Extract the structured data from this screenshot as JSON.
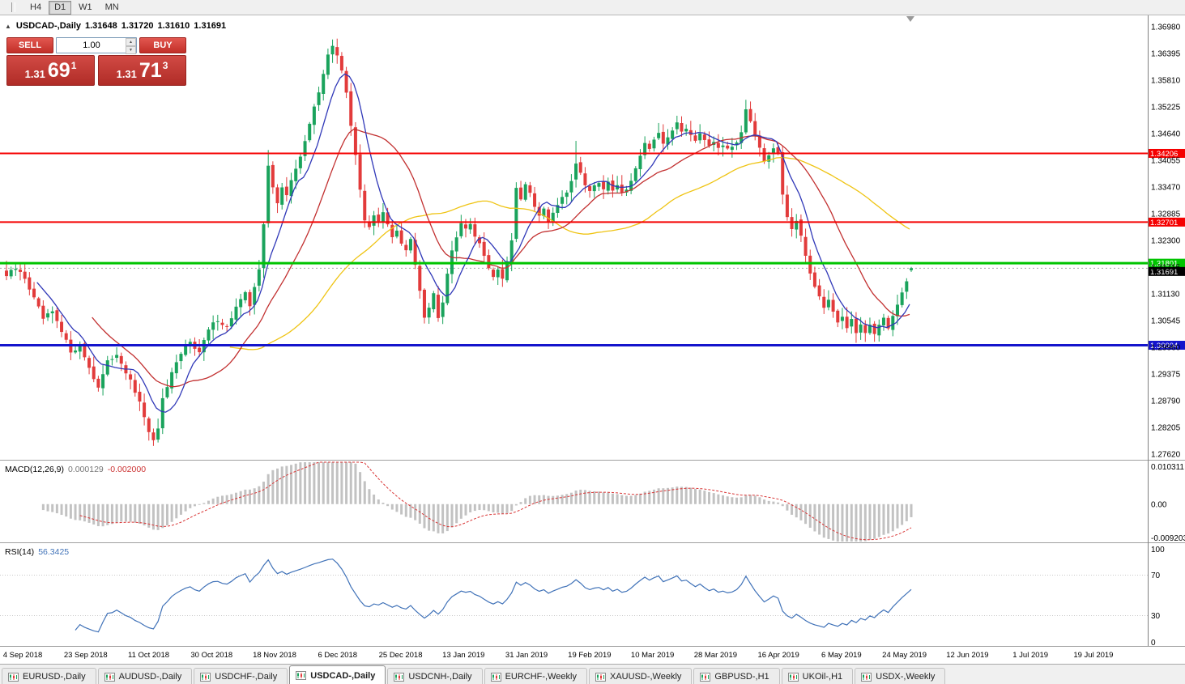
{
  "toolbar": {
    "timeframes": [
      "H4",
      "D1",
      "W1",
      "MN"
    ],
    "active": "D1"
  },
  "chart": {
    "title": "USDCAD-,Daily",
    "collapse_icon": "▲",
    "ohlc": {
      "open": "1.31648",
      "high": "1.31720",
      "low": "1.31610",
      "close": "1.31691"
    },
    "one_click": {
      "sell_label": "SELL",
      "buy_label": "BUY",
      "volume": "1.00",
      "bid_big": "1.31",
      "bid_pips": "69",
      "bid_sup": "1",
      "ask_big": "1.31",
      "ask_pips": "71",
      "ask_sup": "3",
      "spin_up_icon": "▲",
      "spin_down_icon": "▼"
    }
  },
  "price_axis": [
    "1.36980",
    "1.36395",
    "1.35810",
    "1.35225",
    "1.34640",
    "1.34055",
    "1.33470",
    "1.32885",
    "1.32300",
    "1.31715",
    "1.31130",
    "1.30545",
    "1.29960",
    "1.29375",
    "1.28790",
    "1.28205",
    "1.27620"
  ],
  "hlines": [
    {
      "price": 1.34206,
      "label": "1.34206",
      "color": "hline_red",
      "width": 2
    },
    {
      "price": 1.32701,
      "label": "1.32701",
      "color": "hline_red",
      "width": 2
    },
    {
      "price": 1.31801,
      "label": "1.31801",
      "color": "hline_green",
      "width": 3
    },
    {
      "price": 1.30004,
      "label": "1.30004",
      "color": "hline_blue",
      "width": 3
    }
  ],
  "current_price": {
    "value": 1.31691,
    "label": "1.31691"
  },
  "date_axis": [
    "4 Sep 2018",
    "23 Sep 2018",
    "11 Oct 2018",
    "30 Oct 2018",
    "18 Nov 2018",
    "6 Dec 2018",
    "25 Dec 2018",
    "13 Jan 2019",
    "31 Jan 2019",
    "19 Feb 2019",
    "10 Mar 2019",
    "28 Mar 2019",
    "16 Apr 2019",
    "6 May 2019",
    "24 May 2019",
    "12 Jun 2019",
    "1 Jul 2019",
    "19 Jul 2019"
  ],
  "indicators": {
    "macd": {
      "name": "MACD(12,26,9)",
      "value_main": "0.000129",
      "value_signal": "-0.002000",
      "axis_max": "0.010311",
      "axis_zero": "0.00",
      "axis_min": "-0.009203",
      "max": 0.010311,
      "min": -0.009203,
      "params": [
        12,
        26,
        9
      ]
    },
    "rsi": {
      "name": "RSI(14)",
      "value": "56.3425",
      "period": 14,
      "levels": [
        "100",
        "70",
        "30",
        "0"
      ],
      "level_lines": [
        70,
        30
      ]
    }
  },
  "tabs": [
    {
      "label": "EURUSD-,Daily"
    },
    {
      "label": "AUDUSD-,Daily"
    },
    {
      "label": "USDCHF-,Daily"
    },
    {
      "label": "USDCAD-,Daily",
      "active": true
    },
    {
      "label": "USDCNH-,Daily"
    },
    {
      "label": "EURCHF-,Weekly"
    },
    {
      "label": "XAUUSD-,Weekly"
    },
    {
      "label": "GBPUSD-,H1"
    },
    {
      "label": "UKOil-,H1"
    },
    {
      "label": "USDX-,Weekly"
    }
  ],
  "chart_data": {
    "type": "candlestick",
    "symbol": "USDCAD",
    "period": "Daily",
    "bars": 198,
    "chart_shift": true,
    "price_top": 1.3698,
    "price_bottom": 1.2762,
    "ma_periods": {
      "fast": 8,
      "mid": 20,
      "slow": 50
    },
    "waypoints": [
      [
        0,
        1.3152
      ],
      [
        2,
        1.3168
      ],
      [
        4,
        1.3148
      ],
      [
        6,
        1.3102
      ],
      [
        8,
        1.3058
      ],
      [
        10,
        1.3072
      ],
      [
        12,
        1.3028
      ],
      [
        14,
        1.2988
      ],
      [
        16,
        1.3
      ],
      [
        18,
        1.2952
      ],
      [
        20,
        1.2908
      ],
      [
        22,
        1.2962
      ],
      [
        24,
        1.2983
      ],
      [
        26,
        1.2942
      ],
      [
        28,
        1.2898
      ],
      [
        30,
        1.2846
      ],
      [
        31,
        1.2806
      ],
      [
        32,
        1.2788
      ],
      [
        33,
        1.2822
      ],
      [
        34,
        1.288
      ],
      [
        36,
        1.2936
      ],
      [
        38,
        1.298
      ],
      [
        40,
        1.3012
      ],
      [
        42,
        1.2984
      ],
      [
        44,
        1.3034
      ],
      [
        46,
        1.3058
      ],
      [
        48,
        1.304
      ],
      [
        50,
        1.3084
      ],
      [
        52,
        1.3112
      ],
      [
        53,
        1.3088
      ],
      [
        54,
        1.3132
      ],
      [
        55,
        1.3168
      ],
      [
        56,
        1.3262
      ],
      [
        57,
        1.3392
      ],
      [
        58,
        1.3345
      ],
      [
        59,
        1.3315
      ],
      [
        60,
        1.335
      ],
      [
        61,
        1.3328
      ],
      [
        62,
        1.3358
      ],
      [
        63,
        1.3388
      ],
      [
        64,
        1.3415
      ],
      [
        65,
        1.3448
      ],
      [
        66,
        1.3482
      ],
      [
        67,
        1.3524
      ],
      [
        68,
        1.3558
      ],
      [
        69,
        1.3598
      ],
      [
        70,
        1.3632
      ],
      [
        71,
        1.3655
      ],
      [
        72,
        1.3638
      ],
      [
        73,
        1.3605
      ],
      [
        74,
        1.3555
      ],
      [
        75,
        1.3478
      ],
      [
        76,
        1.3415
      ],
      [
        77,
        1.3338
      ],
      [
        78,
        1.3272
      ],
      [
        79,
        1.326
      ],
      [
        80,
        1.3288
      ],
      [
        81,
        1.327
      ],
      [
        82,
        1.3292
      ],
      [
        83,
        1.3262
      ],
      [
        84,
        1.3235
      ],
      [
        85,
        1.3252
      ],
      [
        86,
        1.3228
      ],
      [
        87,
        1.3212
      ],
      [
        88,
        1.3238
      ],
      [
        89,
        1.3178
      ],
      [
        90,
        1.3118
      ],
      [
        91,
        1.3066
      ],
      [
        92,
        1.3088
      ],
      [
        93,
        1.3118
      ],
      [
        94,
        1.3062
      ],
      [
        95,
        1.3098
      ],
      [
        96,
        1.3152
      ],
      [
        97,
        1.3208
      ],
      [
        98,
        1.3242
      ],
      [
        99,
        1.3268
      ],
      [
        100,
        1.3252
      ],
      [
        101,
        1.3266
      ],
      [
        102,
        1.3242
      ],
      [
        103,
        1.3224
      ],
      [
        104,
        1.3198
      ],
      [
        105,
        1.3172
      ],
      [
        106,
        1.315
      ],
      [
        107,
        1.3168
      ],
      [
        108,
        1.3142
      ],
      [
        109,
        1.3178
      ],
      [
        110,
        1.3225
      ],
      [
        111,
        1.3342
      ],
      [
        112,
        1.3325
      ],
      [
        113,
        1.3352
      ],
      [
        114,
        1.333
      ],
      [
        115,
        1.3302
      ],
      [
        116,
        1.3282
      ],
      [
        117,
        1.3298
      ],
      [
        118,
        1.3272
      ],
      [
        119,
        1.3286
      ],
      [
        120,
        1.3308
      ],
      [
        121,
        1.3328
      ],
      [
        122,
        1.3338
      ],
      [
        123,
        1.3358
      ],
      [
        124,
        1.3402
      ],
      [
        125,
        1.3378
      ],
      [
        126,
        1.3355
      ],
      [
        127,
        1.334
      ],
      [
        128,
        1.335
      ],
      [
        129,
        1.3358
      ],
      [
        130,
        1.3344
      ],
      [
        131,
        1.3354
      ],
      [
        132,
        1.334
      ],
      [
        133,
        1.335
      ],
      [
        134,
        1.3332
      ],
      [
        135,
        1.3346
      ],
      [
        136,
        1.3364
      ],
      [
        137,
        1.3386
      ],
      [
        138,
        1.342
      ],
      [
        139,
        1.3444
      ],
      [
        140,
        1.343
      ],
      [
        141,
        1.3446
      ],
      [
        142,
        1.346
      ],
      [
        143,
        1.3442
      ],
      [
        144,
        1.3456
      ],
      [
        145,
        1.3474
      ],
      [
        146,
        1.3484
      ],
      [
        147,
        1.3468
      ],
      [
        148,
        1.3478
      ],
      [
        149,
        1.3462
      ],
      [
        150,
        1.3452
      ],
      [
        151,
        1.3466
      ],
      [
        152,
        1.3455
      ],
      [
        153,
        1.344
      ],
      [
        154,
        1.345
      ],
      [
        155,
        1.3436
      ],
      [
        156,
        1.3442
      ],
      [
        157,
        1.3426
      ],
      [
        158,
        1.3436
      ],
      [
        159,
        1.3448
      ],
      [
        160,
        1.3472
      ],
      [
        161,
        1.352
      ],
      [
        162,
        1.3494
      ],
      [
        163,
        1.3458
      ],
      [
        164,
        1.3428
      ],
      [
        165,
        1.3398
      ],
      [
        166,
        1.3414
      ],
      [
        167,
        1.343
      ],
      [
        168,
        1.3418
      ],
      [
        169,
        1.333
      ],
      [
        170,
        1.3282
      ],
      [
        171,
        1.3256
      ],
      [
        172,
        1.327
      ],
      [
        173,
        1.3235
      ],
      [
        174,
        1.3198
      ],
      [
        175,
        1.3162
      ],
      [
        176,
        1.3128
      ],
      [
        177,
        1.3104
      ],
      [
        178,
        1.3086
      ],
      [
        179,
        1.31
      ],
      [
        180,
        1.3074
      ],
      [
        181,
        1.305
      ],
      [
        182,
        1.3066
      ],
      [
        183,
        1.304
      ],
      [
        184,
        1.3056
      ],
      [
        185,
        1.303
      ],
      [
        186,
        1.3046
      ],
      [
        187,
        1.3026
      ],
      [
        188,
        1.3042
      ],
      [
        189,
        1.302
      ],
      [
        190,
        1.3044
      ],
      [
        191,
        1.3062
      ],
      [
        192,
        1.3042
      ],
      [
        193,
        1.3066
      ],
      [
        194,
        1.3092
      ],
      [
        195,
        1.3118
      ],
      [
        196,
        1.3142
      ],
      [
        197,
        1.31691
      ]
    ],
    "wick_pins": {
      "high": [
        [
          57,
          1.3428
        ],
        [
          71,
          1.367
        ],
        [
          124,
          1.3448
        ],
        [
          139,
          1.3458
        ],
        [
          161,
          1.3538
        ],
        [
          169,
          1.3438
        ]
      ],
      "low": [
        [
          32,
          1.278
        ],
        [
          91,
          1.3048
        ],
        [
          189,
          1.3008
        ]
      ]
    },
    "last_bar_ohlc": [
      1.31648,
      1.3172,
      1.3161,
      1.31691
    ]
  },
  "colors": {
    "bull": "#1AA35C",
    "bear": "#E23B3B",
    "ma_fast": "#3038B8",
    "ma_mid": "#C23030",
    "ma_slow": "#EFC414",
    "macd_hist": "#C2C2C2",
    "macd_signal": "#D93636",
    "rsi": "#4072B8",
    "hline_red": "#F50000",
    "hline_green": "#00C400",
    "hline_blue": "#1414CC",
    "price_marker_bg": "#000000",
    "axis_line": "#808080",
    "separator": "#A0A0A0"
  }
}
